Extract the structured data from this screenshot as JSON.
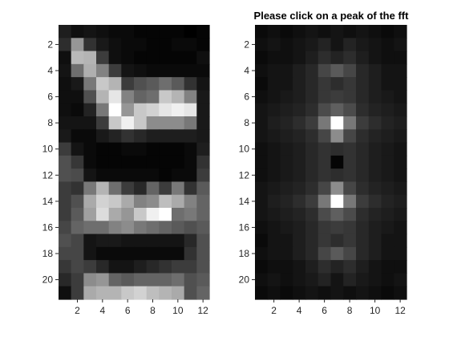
{
  "figure": {
    "background": "#ffffff",
    "colormap": "gray"
  },
  "chart_data": [
    {
      "type": "heatmap",
      "title": "",
      "xlabel": "",
      "ylabel": "",
      "n_rows": 21,
      "n_cols": 12,
      "xticks": [
        2,
        4,
        6,
        8,
        10,
        12
      ],
      "yticks": [
        2,
        4,
        6,
        8,
        10,
        12,
        14,
        16,
        18,
        20
      ],
      "xlim": [
        0.5,
        12.5
      ],
      "ylim": [
        0.5,
        21.5
      ],
      "y_direction": "reverse",
      "color_range": [
        0,
        255
      ],
      "values": [
        [
          30,
          15,
          20,
          15,
          10,
          10,
          5,
          5,
          5,
          5,
          0,
          5
        ],
        [
          45,
          150,
          50,
          25,
          15,
          10,
          10,
          5,
          5,
          10,
          10,
          5
        ],
        [
          15,
          185,
          180,
          60,
          15,
          10,
          5,
          5,
          5,
          5,
          5,
          15
        ],
        [
          20,
          110,
          175,
          130,
          60,
          20,
          15,
          10,
          10,
          10,
          10,
          10
        ],
        [
          15,
          25,
          120,
          200,
          180,
          60,
          80,
          90,
          110,
          90,
          50,
          20
        ],
        [
          15,
          15,
          80,
          180,
          230,
          130,
          100,
          110,
          200,
          180,
          130,
          25
        ],
        [
          15,
          10,
          35,
          120,
          255,
          150,
          200,
          210,
          230,
          240,
          230,
          25
        ],
        [
          20,
          20,
          20,
          60,
          200,
          240,
          200,
          140,
          140,
          140,
          120,
          25
        ],
        [
          25,
          10,
          10,
          25,
          35,
          50,
          40,
          30,
          30,
          30,
          30,
          25
        ],
        [
          60,
          20,
          10,
          5,
          5,
          10,
          10,
          5,
          5,
          5,
          10,
          30
        ],
        [
          80,
          55,
          10,
          5,
          5,
          5,
          5,
          5,
          5,
          5,
          10,
          50
        ],
        [
          80,
          75,
          20,
          10,
          10,
          10,
          10,
          10,
          5,
          10,
          10,
          60
        ],
        [
          60,
          50,
          120,
          180,
          110,
          60,
          40,
          100,
          60,
          120,
          50,
          90
        ],
        [
          60,
          80,
          170,
          210,
          200,
          170,
          130,
          140,
          190,
          170,
          130,
          100
        ],
        [
          60,
          90,
          160,
          220,
          170,
          150,
          200,
          240,
          255,
          110,
          120,
          100
        ],
        [
          70,
          100,
          110,
          110,
          130,
          140,
          120,
          110,
          100,
          90,
          80,
          90
        ],
        [
          80,
          70,
          20,
          25,
          25,
          20,
          20,
          20,
          20,
          20,
          40,
          80
        ],
        [
          70,
          70,
          20,
          10,
          10,
          10,
          10,
          10,
          10,
          10,
          50,
          80
        ],
        [
          55,
          70,
          60,
          40,
          20,
          20,
          30,
          40,
          50,
          60,
          60,
          80
        ],
        [
          40,
          60,
          140,
          150,
          100,
          90,
          100,
          100,
          100,
          110,
          80,
          90
        ],
        [
          15,
          60,
          170,
          180,
          180,
          200,
          210,
          190,
          180,
          170,
          80,
          100
        ]
      ]
    },
    {
      "type": "heatmap",
      "title": "Please click on a peak of the fft",
      "xlabel": "",
      "ylabel": "",
      "n_rows": 21,
      "n_cols": 12,
      "xticks": [
        2,
        4,
        6,
        8,
        10,
        12
      ],
      "yticks": [
        2,
        4,
        6,
        8,
        10,
        12,
        14,
        16,
        18,
        20
      ],
      "xlim": [
        0.5,
        12.5
      ],
      "ylim": [
        0.5,
        21.5
      ],
      "y_direction": "reverse",
      "color_range": [
        0,
        255
      ],
      "values": [
        [
          10,
          15,
          10,
          15,
          20,
          15,
          20,
          15,
          20,
          15,
          10,
          15
        ],
        [
          15,
          20,
          15,
          20,
          25,
          35,
          20,
          35,
          25,
          20,
          15,
          20
        ],
        [
          10,
          15,
          15,
          20,
          30,
          45,
          35,
          45,
          30,
          20,
          15,
          15
        ],
        [
          15,
          20,
          20,
          30,
          40,
          70,
          90,
          70,
          40,
          30,
          20,
          20
        ],
        [
          10,
          20,
          20,
          30,
          40,
          55,
          45,
          55,
          40,
          30,
          20,
          20
        ],
        [
          15,
          20,
          25,
          30,
          40,
          55,
          60,
          55,
          40,
          30,
          25,
          20
        ],
        [
          20,
          25,
          30,
          35,
          45,
          75,
          95,
          75,
          45,
          35,
          30,
          25
        ],
        [
          20,
          30,
          35,
          45,
          60,
          120,
          255,
          120,
          60,
          45,
          35,
          30
        ],
        [
          20,
          25,
          30,
          35,
          45,
          70,
          140,
          70,
          45,
          35,
          30,
          25
        ],
        [
          15,
          20,
          25,
          30,
          40,
          50,
          45,
          50,
          40,
          30,
          25,
          20
        ],
        [
          15,
          20,
          25,
          30,
          40,
          50,
          5,
          50,
          40,
          30,
          25,
          20
        ],
        [
          15,
          20,
          25,
          30,
          40,
          50,
          45,
          50,
          40,
          30,
          25,
          20
        ],
        [
          20,
          25,
          30,
          35,
          45,
          70,
          140,
          70,
          45,
          35,
          30,
          25
        ],
        [
          20,
          30,
          35,
          45,
          60,
          120,
          255,
          120,
          60,
          45,
          35,
          30
        ],
        [
          20,
          25,
          30,
          35,
          45,
          75,
          95,
          75,
          45,
          35,
          30,
          25
        ],
        [
          15,
          20,
          25,
          30,
          40,
          55,
          60,
          55,
          40,
          30,
          25,
          20
        ],
        [
          10,
          20,
          20,
          30,
          40,
          55,
          45,
          55,
          40,
          30,
          20,
          20
        ],
        [
          15,
          20,
          20,
          30,
          40,
          70,
          90,
          70,
          40,
          30,
          20,
          20
        ],
        [
          10,
          15,
          15,
          20,
          30,
          45,
          35,
          45,
          30,
          20,
          15,
          15
        ],
        [
          15,
          20,
          15,
          20,
          25,
          35,
          20,
          35,
          25,
          20,
          15,
          20
        ],
        [
          10,
          15,
          10,
          15,
          20,
          15,
          20,
          15,
          20,
          15,
          10,
          15
        ]
      ]
    }
  ]
}
